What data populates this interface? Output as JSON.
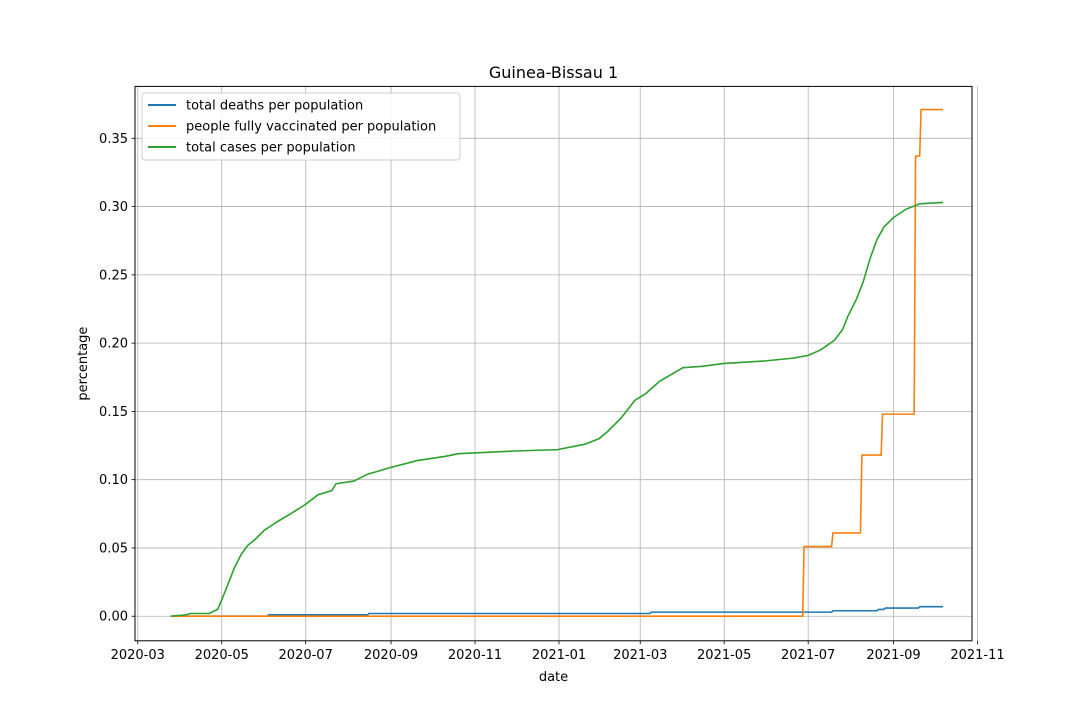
{
  "chart_data": {
    "type": "line",
    "title": "Guinea-Bissau 1",
    "xlabel": "date",
    "ylabel": "percentage",
    "xlim": [
      "2020-02-28",
      "2021-10-28"
    ],
    "ylim": [
      -0.018,
      0.388
    ],
    "x_ticks": [
      "2020-03",
      "2020-05",
      "2020-07",
      "2020-09",
      "2020-11",
      "2021-01",
      "2021-03",
      "2021-05",
      "2021-07",
      "2021-09",
      "2021-11"
    ],
    "y_ticks": [
      "0.00",
      "0.05",
      "0.10",
      "0.15",
      "0.20",
      "0.25",
      "0.30",
      "0.35"
    ],
    "y_tick_values": [
      0.0,
      0.05,
      0.1,
      0.15,
      0.2,
      0.25,
      0.3,
      0.35
    ],
    "grid": true,
    "legend_position": "top-left",
    "series": [
      {
        "name": "total deaths per population",
        "color": "#1f77b4",
        "step": true,
        "points": [
          [
            "2020-03-25",
            0.0
          ],
          [
            "2020-06-03",
            0.0
          ],
          [
            "2020-06-04",
            0.001
          ],
          [
            "2020-08-15",
            0.001
          ],
          [
            "2020-08-16",
            0.002
          ],
          [
            "2021-03-08",
            0.002
          ],
          [
            "2021-03-09",
            0.003
          ],
          [
            "2021-07-18",
            0.003
          ],
          [
            "2021-07-19",
            0.004
          ],
          [
            "2021-08-20",
            0.004
          ],
          [
            "2021-08-21",
            0.005
          ],
          [
            "2021-08-25",
            0.005
          ],
          [
            "2021-08-26",
            0.006
          ],
          [
            "2021-09-19",
            0.006
          ],
          [
            "2021-09-20",
            0.007
          ],
          [
            "2021-10-07",
            0.007
          ]
        ]
      },
      {
        "name": "people fully vaccinated per population",
        "color": "#ff7f0e",
        "step": true,
        "points": [
          [
            "2020-03-25",
            0.0
          ],
          [
            "2021-06-27",
            0.0
          ],
          [
            "2021-06-28",
            0.051
          ],
          [
            "2021-07-18",
            0.051
          ],
          [
            "2021-07-19",
            0.061
          ],
          [
            "2021-08-08",
            0.061
          ],
          [
            "2021-08-09",
            0.118
          ],
          [
            "2021-08-23",
            0.118
          ],
          [
            "2021-08-24",
            0.148
          ],
          [
            "2021-09-16",
            0.148
          ],
          [
            "2021-09-17",
            0.337
          ],
          [
            "2021-09-20",
            0.337
          ],
          [
            "2021-09-21",
            0.371
          ],
          [
            "2021-10-07",
            0.371
          ]
        ]
      },
      {
        "name": "total cases per population",
        "color": "#2ca02c",
        "step": false,
        "points": [
          [
            "2020-03-25",
            0.0
          ],
          [
            "2020-04-05",
            0.001
          ],
          [
            "2020-04-08",
            0.002
          ],
          [
            "2020-04-22",
            0.002
          ],
          [
            "2020-04-28",
            0.005
          ],
          [
            "2020-05-01",
            0.012
          ],
          [
            "2020-05-05",
            0.022
          ],
          [
            "2020-05-10",
            0.035
          ],
          [
            "2020-05-15",
            0.045
          ],
          [
            "2020-05-20",
            0.052
          ],
          [
            "2020-05-25",
            0.056
          ],
          [
            "2020-06-01",
            0.063
          ],
          [
            "2020-06-10",
            0.069
          ],
          [
            "2020-06-20",
            0.075
          ],
          [
            "2020-07-01",
            0.082
          ],
          [
            "2020-07-10",
            0.089
          ],
          [
            "2020-07-20",
            0.092
          ],
          [
            "2020-07-23",
            0.097
          ],
          [
            "2020-08-05",
            0.099
          ],
          [
            "2020-08-15",
            0.104
          ],
          [
            "2020-09-01",
            0.109
          ],
          [
            "2020-09-20",
            0.114
          ],
          [
            "2020-10-10",
            0.117
          ],
          [
            "2020-10-20",
            0.119
          ],
          [
            "2020-11-10",
            0.12
          ],
          [
            "2020-11-30",
            0.121
          ],
          [
            "2020-12-31",
            0.122
          ],
          [
            "2021-01-20",
            0.126
          ],
          [
            "2021-01-30",
            0.13
          ],
          [
            "2021-02-05",
            0.135
          ],
          [
            "2021-02-15",
            0.145
          ],
          [
            "2021-02-25",
            0.158
          ],
          [
            "2021-03-05",
            0.163
          ],
          [
            "2021-03-15",
            0.172
          ],
          [
            "2021-04-01",
            0.182
          ],
          [
            "2021-04-15",
            0.183
          ],
          [
            "2021-04-30",
            0.185
          ],
          [
            "2021-05-31",
            0.187
          ],
          [
            "2021-06-20",
            0.189
          ],
          [
            "2021-07-01",
            0.191
          ],
          [
            "2021-07-10",
            0.195
          ],
          [
            "2021-07-20",
            0.202
          ],
          [
            "2021-07-26",
            0.21
          ],
          [
            "2021-07-30",
            0.22
          ],
          [
            "2021-08-05",
            0.232
          ],
          [
            "2021-08-10",
            0.245
          ],
          [
            "2021-08-15",
            0.262
          ],
          [
            "2021-08-20",
            0.276
          ],
          [
            "2021-08-25",
            0.285
          ],
          [
            "2021-09-01",
            0.292
          ],
          [
            "2021-09-10",
            0.298
          ],
          [
            "2021-09-20",
            0.302
          ],
          [
            "2021-10-07",
            0.303
          ]
        ]
      }
    ]
  }
}
